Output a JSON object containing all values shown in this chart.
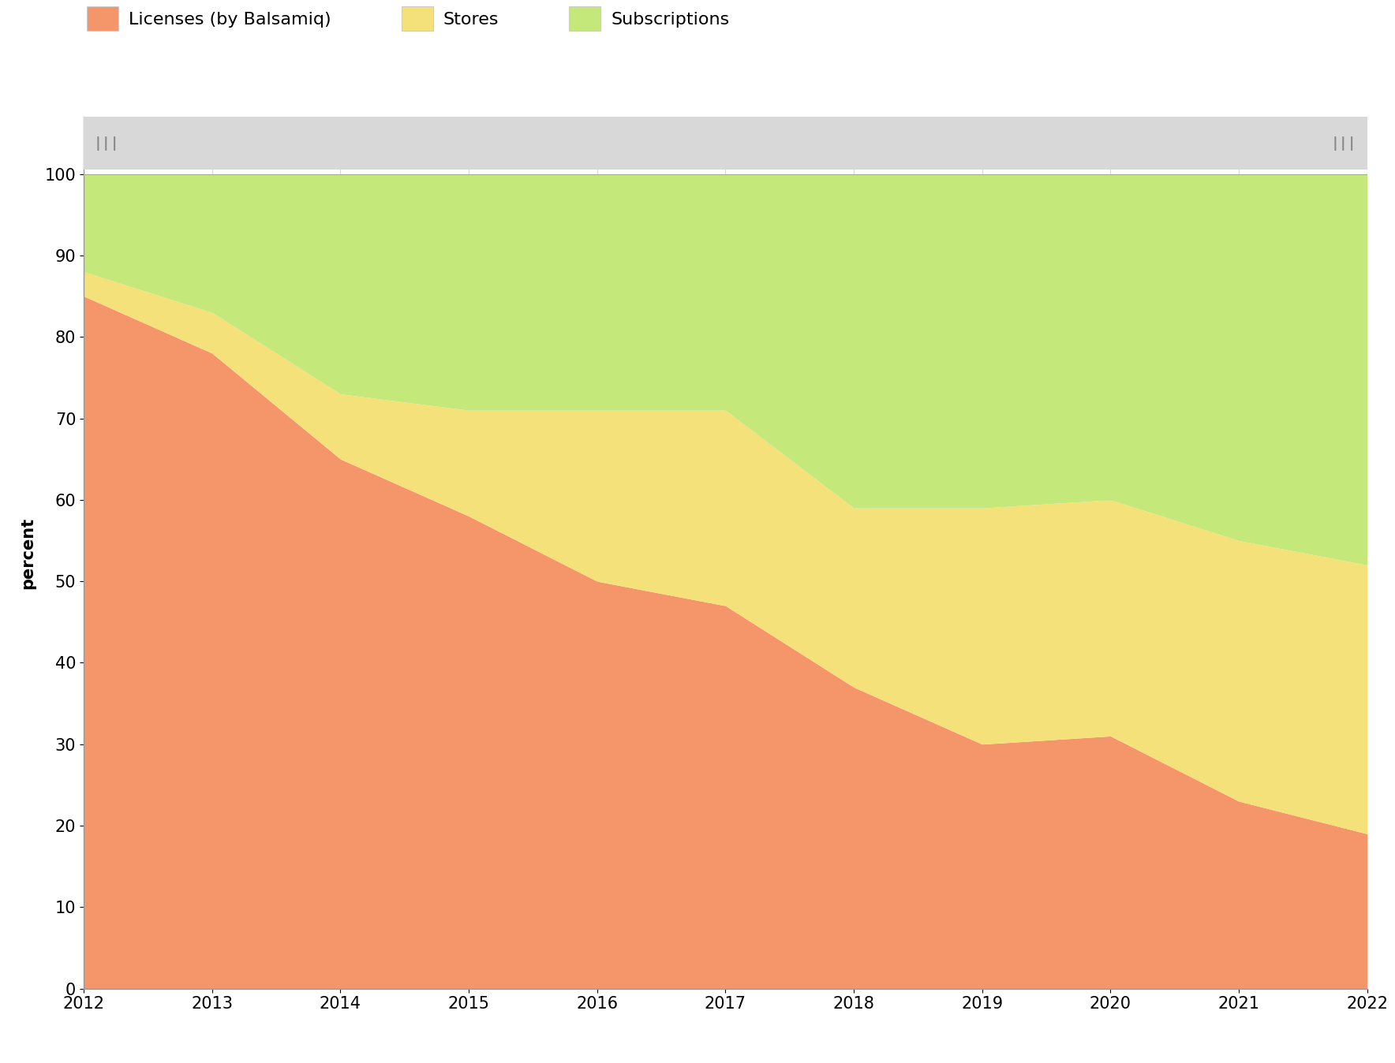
{
  "years": [
    2012,
    2013,
    2014,
    2015,
    2016,
    2017,
    2018,
    2019,
    2020,
    2021,
    2022
  ],
  "licenses": [
    85,
    78,
    65,
    58,
    50,
    47,
    37,
    30,
    31,
    23,
    19
  ],
  "stores": [
    3,
    5,
    8,
    13,
    21,
    24,
    22,
    29,
    29,
    32,
    33
  ],
  "subscriptions": [
    12,
    17,
    27,
    29,
    29,
    29,
    41,
    41,
    40,
    45,
    48
  ],
  "colors": {
    "licenses": "#F4956A",
    "stores": "#F5E17A",
    "subscriptions": "#C5E87A"
  },
  "legend_labels": [
    "Licenses (by Balsamiq)",
    "Stores",
    "Subscriptions"
  ],
  "ylabel": "percent",
  "ylim": [
    0,
    100
  ],
  "xlim": [
    2012,
    2022
  ],
  "figure_bg": "#ffffff",
  "plot_bg": "#ffffff",
  "grid_color": "#d8d8d8",
  "top_bar_color": "#d8d8d8",
  "top_bar_indicator_color": "#888888",
  "figsize": [
    17.68,
    13.48
  ],
  "dpi": 100
}
